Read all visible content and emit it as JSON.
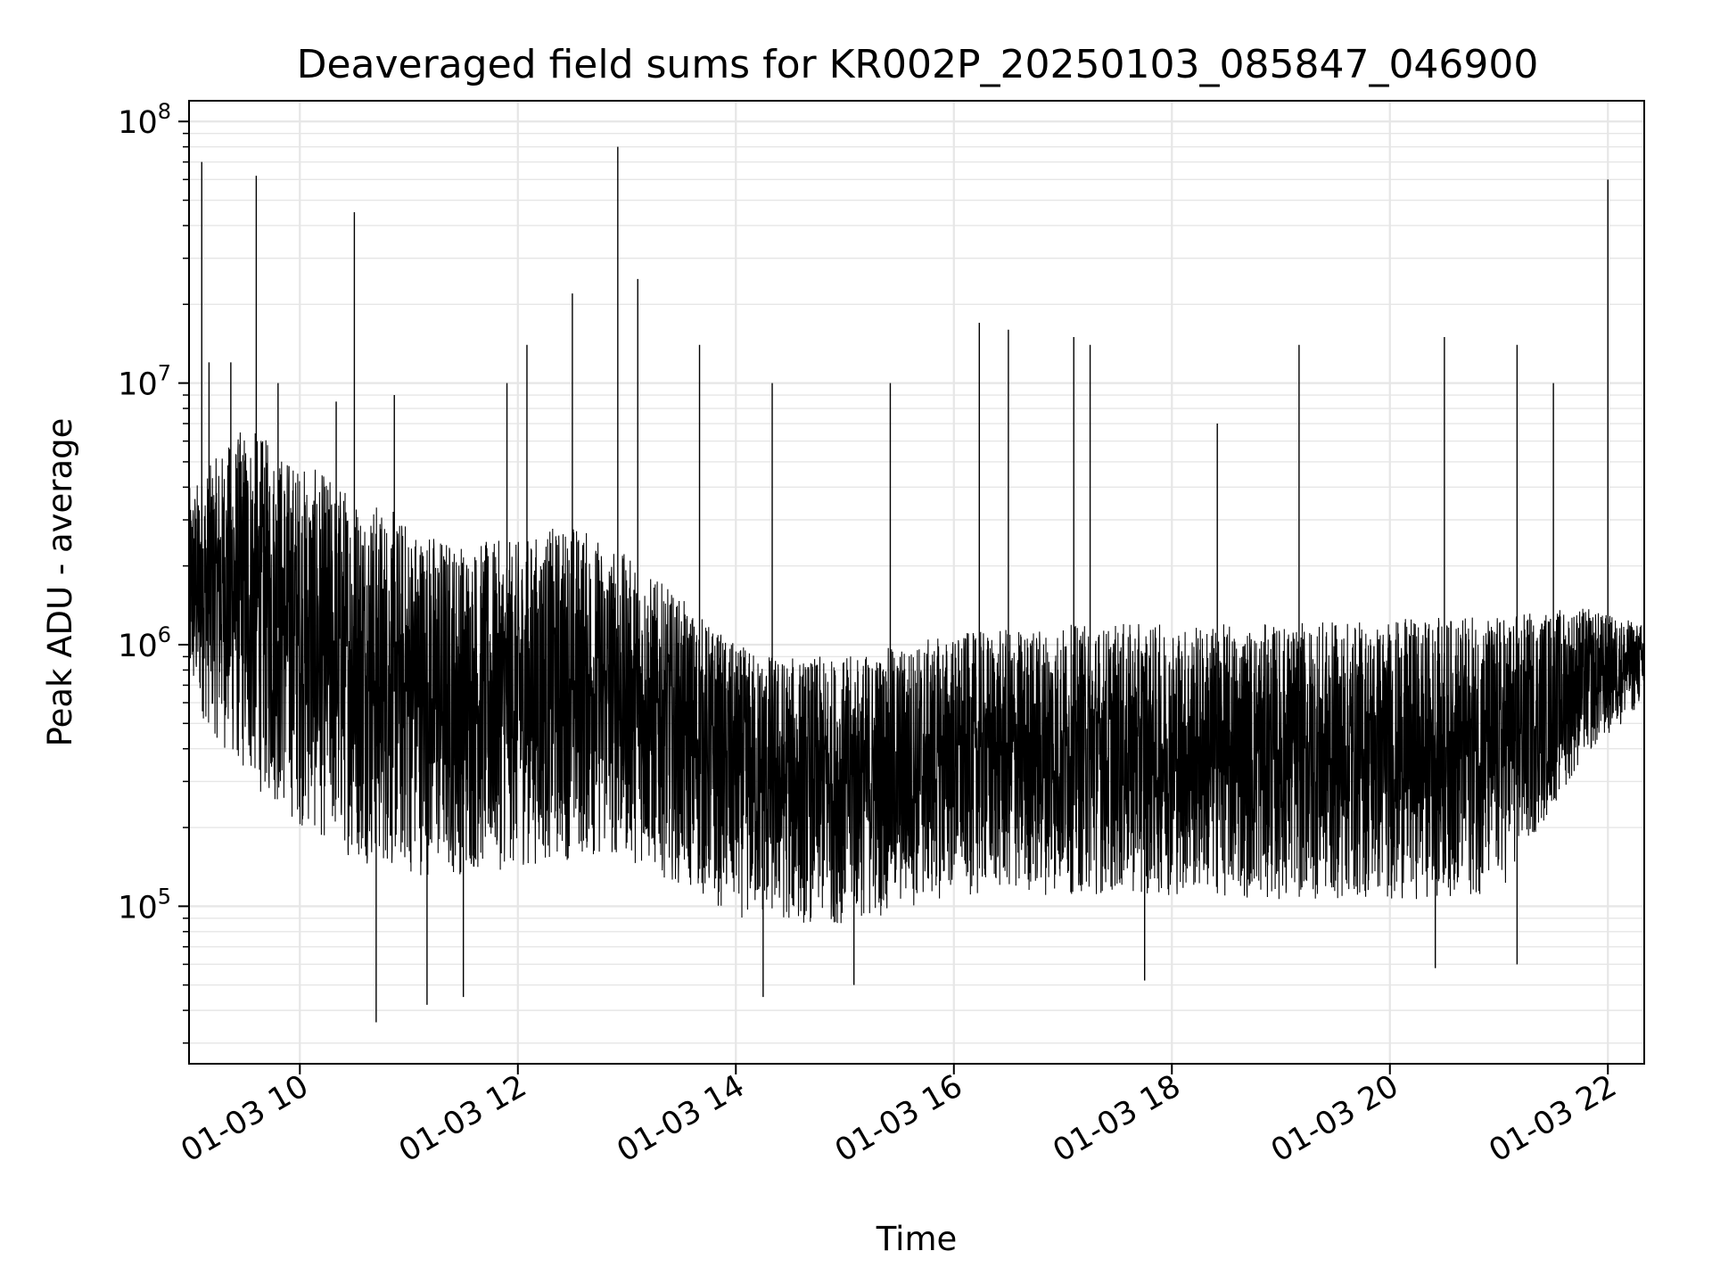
{
  "chart_data": {
    "type": "line",
    "title": "Deaveraged field sums for KR002P_20250103_085847_046900",
    "xlabel": "Time",
    "ylabel": "Peak ADU - average",
    "yscale": "log",
    "xlim": [
      "2025-01-03 08:59",
      "2025-01-03 22:20"
    ],
    "ylim": [
      25000,
      120000000
    ],
    "x_ticks": [
      {
        "label": "01-03 10",
        "value": "2025-01-03 10:00"
      },
      {
        "label": "01-03 12",
        "value": "2025-01-03 12:00"
      },
      {
        "label": "01-03 14",
        "value": "2025-01-03 14:00"
      },
      {
        "label": "01-03 16",
        "value": "2025-01-03 16:00"
      },
      {
        "label": "01-03 18",
        "value": "2025-01-03 18:00"
      },
      {
        "label": "01-03 20",
        "value": "2025-01-03 20:00"
      },
      {
        "label": "01-03 22",
        "value": "2025-01-03 22:00"
      }
    ],
    "y_ticks": [
      {
        "base": "10",
        "exp": "5",
        "value": 100000
      },
      {
        "base": "10",
        "exp": "6",
        "value": 1000000
      },
      {
        "base": "10",
        "exp": "7",
        "value": 10000000
      },
      {
        "base": "10",
        "exp": "8",
        "value": 100000000
      }
    ],
    "grid": true,
    "line_color": "#000000",
    "grid_color": "#e6e6e6",
    "series": [
      {
        "envelope": [
          {
            "time": "2025-01-03 09:00",
            "low": 600000,
            "high": 4000000
          },
          {
            "time": "2025-01-03 09:30",
            "low": 300000,
            "high": 7000000
          },
          {
            "time": "2025-01-03 10:00",
            "low": 200000,
            "high": 5000000
          },
          {
            "time": "2025-01-03 10:30",
            "low": 150000,
            "high": 4000000
          },
          {
            "time": "2025-01-03 11:00",
            "low": 130000,
            "high": 3000000
          },
          {
            "time": "2025-01-03 11:30",
            "low": 130000,
            "high": 2500000
          },
          {
            "time": "2025-01-03 12:00",
            "low": 140000,
            "high": 2500000
          },
          {
            "time": "2025-01-03 12:30",
            "low": 150000,
            "high": 3000000
          },
          {
            "time": "2025-01-03 13:00",
            "low": 150000,
            "high": 2200000
          },
          {
            "time": "2025-01-03 13:30",
            "low": 120000,
            "high": 1500000
          },
          {
            "time": "2025-01-03 14:00",
            "low": 90000,
            "high": 1000000
          },
          {
            "time": "2025-01-03 14:30",
            "low": 85000,
            "high": 900000
          },
          {
            "time": "2025-01-03 15:00",
            "low": 85000,
            "high": 900000
          },
          {
            "time": "2025-01-03 15:30",
            "low": 95000,
            "high": 1000000
          },
          {
            "time": "2025-01-03 16:00",
            "low": 110000,
            "high": 1100000
          },
          {
            "time": "2025-01-03 17:00",
            "low": 110000,
            "high": 1200000
          },
          {
            "time": "2025-01-03 18:00",
            "low": 110000,
            "high": 1200000
          },
          {
            "time": "2025-01-03 19:00",
            "low": 105000,
            "high": 1200000
          },
          {
            "time": "2025-01-03 20:00",
            "low": 105000,
            "high": 1250000
          },
          {
            "time": "2025-01-03 21:00",
            "low": 110000,
            "high": 1300000
          },
          {
            "time": "2025-01-03 21:45",
            "low": 350000,
            "high": 1400000
          },
          {
            "time": "2025-01-03 22:20",
            "low": 600000,
            "high": 1200000
          }
        ],
        "spikes_up": [
          {
            "time": "2025-01-03 09:06",
            "value": 70000000
          },
          {
            "time": "2025-01-03 09:10",
            "value": 12000000
          },
          {
            "time": "2025-01-03 09:22",
            "value": 12000000
          },
          {
            "time": "2025-01-03 09:36",
            "value": 62000000
          },
          {
            "time": "2025-01-03 09:48",
            "value": 10000000
          },
          {
            "time": "2025-01-03 10:20",
            "value": 8500000
          },
          {
            "time": "2025-01-03 10:52",
            "value": 9000000
          },
          {
            "time": "2025-01-03 11:54",
            "value": 10000000
          },
          {
            "time": "2025-01-03 12:05",
            "value": 14000000
          },
          {
            "time": "2025-01-03 12:30",
            "value": 22000000
          },
          {
            "time": "2025-01-03 12:55",
            "value": 80000000
          },
          {
            "time": "2025-01-03 13:06",
            "value": 25000000
          },
          {
            "time": "2025-01-03 13:40",
            "value": 14000000
          },
          {
            "time": "2025-01-03 14:20",
            "value": 10000000
          },
          {
            "time": "2025-01-03 15:25",
            "value": 10000000
          },
          {
            "time": "2025-01-03 16:14",
            "value": 17000000
          },
          {
            "time": "2025-01-03 16:30",
            "value": 16000000
          },
          {
            "time": "2025-01-03 17:06",
            "value": 15000000
          },
          {
            "time": "2025-01-03 17:15",
            "value": 14000000
          },
          {
            "time": "2025-01-03 18:25",
            "value": 7000000
          },
          {
            "time": "2025-01-03 19:10",
            "value": 14000000
          },
          {
            "time": "2025-01-03 20:30",
            "value": 15000000
          },
          {
            "time": "2025-01-03 21:10",
            "value": 14000000
          },
          {
            "time": "2025-01-03 21:30",
            "value": 10000000
          },
          {
            "time": "2025-01-03 22:00",
            "value": 60000000
          }
        ],
        "spikes_down": [
          {
            "time": "2025-01-03 10:30",
            "value": 45000000
          },
          {
            "time": "2025-01-03 10:42",
            "value": 36000
          },
          {
            "time": "2025-01-03 11:10",
            "value": 42000
          },
          {
            "time": "2025-01-03 11:30",
            "value": 45000
          },
          {
            "time": "2025-01-03 14:15",
            "value": 45000
          },
          {
            "time": "2025-01-03 15:05",
            "value": 50000
          },
          {
            "time": "2025-01-03 17:45",
            "value": 52000
          },
          {
            "time": "2025-01-03 20:25",
            "value": 58000
          },
          {
            "time": "2025-01-03 21:10",
            "value": 60000
          }
        ]
      }
    ]
  }
}
